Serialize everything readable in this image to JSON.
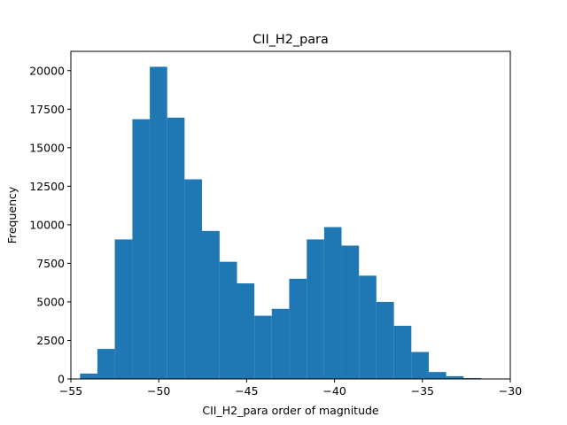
{
  "chart_data": {
    "type": "bar",
    "title": "CII_H2_para",
    "xlabel": "CII_H2_para order of magnitude",
    "ylabel": "Frequency",
    "xlim": [
      -55,
      -30
    ],
    "ylim": [
      0,
      21250
    ],
    "x_ticks": [
      -55,
      -50,
      -45,
      -40,
      -35,
      -30
    ],
    "x_tick_labels": [
      "−55",
      "−50",
      "−45",
      "−40",
      "−35",
      "−30"
    ],
    "y_ticks": [
      0,
      2500,
      5000,
      7500,
      10000,
      12500,
      15000,
      17500,
      20000
    ],
    "y_tick_labels": [
      "0",
      "2500",
      "5000",
      "7500",
      "10000",
      "12500",
      "15000",
      "17500",
      "20000"
    ],
    "grid": false,
    "bar_color": "#1f77b4",
    "bins": [
      {
        "x0": -54.48,
        "x1": -53.49,
        "value": 350
      },
      {
        "x0": -53.49,
        "x1": -52.5,
        "value": 1950
      },
      {
        "x0": -52.5,
        "x1": -51.5,
        "value": 9050
      },
      {
        "x0": -51.5,
        "x1": -50.51,
        "value": 16850
      },
      {
        "x0": -50.51,
        "x1": -49.52,
        "value": 20250
      },
      {
        "x0": -49.52,
        "x1": -48.53,
        "value": 16950
      },
      {
        "x0": -48.53,
        "x1": -47.54,
        "value": 12950
      },
      {
        "x0": -47.54,
        "x1": -46.54,
        "value": 9600
      },
      {
        "x0": -46.54,
        "x1": -45.55,
        "value": 7600
      },
      {
        "x0": -45.55,
        "x1": -44.56,
        "value": 6200
      },
      {
        "x0": -44.56,
        "x1": -43.57,
        "value": 4100
      },
      {
        "x0": -43.57,
        "x1": -42.58,
        "value": 4550
      },
      {
        "x0": -42.58,
        "x1": -41.58,
        "value": 6500
      },
      {
        "x0": -41.58,
        "x1": -40.59,
        "value": 9050
      },
      {
        "x0": -40.59,
        "x1": -39.6,
        "value": 9850
      },
      {
        "x0": -39.6,
        "x1": -38.61,
        "value": 8650
      },
      {
        "x0": -38.61,
        "x1": -37.62,
        "value": 6700
      },
      {
        "x0": -37.62,
        "x1": -36.62,
        "value": 5000
      },
      {
        "x0": -36.62,
        "x1": -35.63,
        "value": 3450
      },
      {
        "x0": -35.63,
        "x1": -34.64,
        "value": 1750
      },
      {
        "x0": -34.64,
        "x1": -33.65,
        "value": 450
      },
      {
        "x0": -33.65,
        "x1": -32.66,
        "value": 180
      },
      {
        "x0": -32.66,
        "x1": -31.66,
        "value": 60
      }
    ]
  }
}
